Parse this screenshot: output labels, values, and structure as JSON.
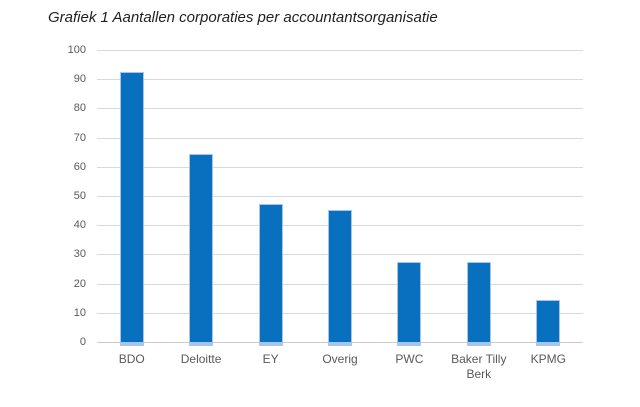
{
  "chart_data": {
    "type": "bar",
    "title": "Grafiek 1 Aantallen corporaties per accountantsorganisatie",
    "categories": [
      "BDO",
      "Deloitte",
      "EY",
      "Overig",
      "PWC",
      "Baker Tilly Berk",
      "KPMG"
    ],
    "values": [
      92,
      64,
      47,
      45,
      27,
      27,
      14
    ],
    "xlabel": "",
    "ylabel": "",
    "ylim": [
      0,
      100
    ],
    "yticks": [
      0,
      10,
      20,
      30,
      40,
      50,
      60,
      70,
      80,
      90,
      100
    ],
    "legend_position": "none",
    "grid": "horizontal",
    "colors": {
      "bar_fill": "#0870be",
      "bar_border": "#a6c6e8",
      "gridline": "#d9d9d9",
      "axis_line": "#cbcbcb",
      "tick_label": "#595959",
      "title": "#1f1f1f",
      "background": "#ffffff"
    }
  }
}
